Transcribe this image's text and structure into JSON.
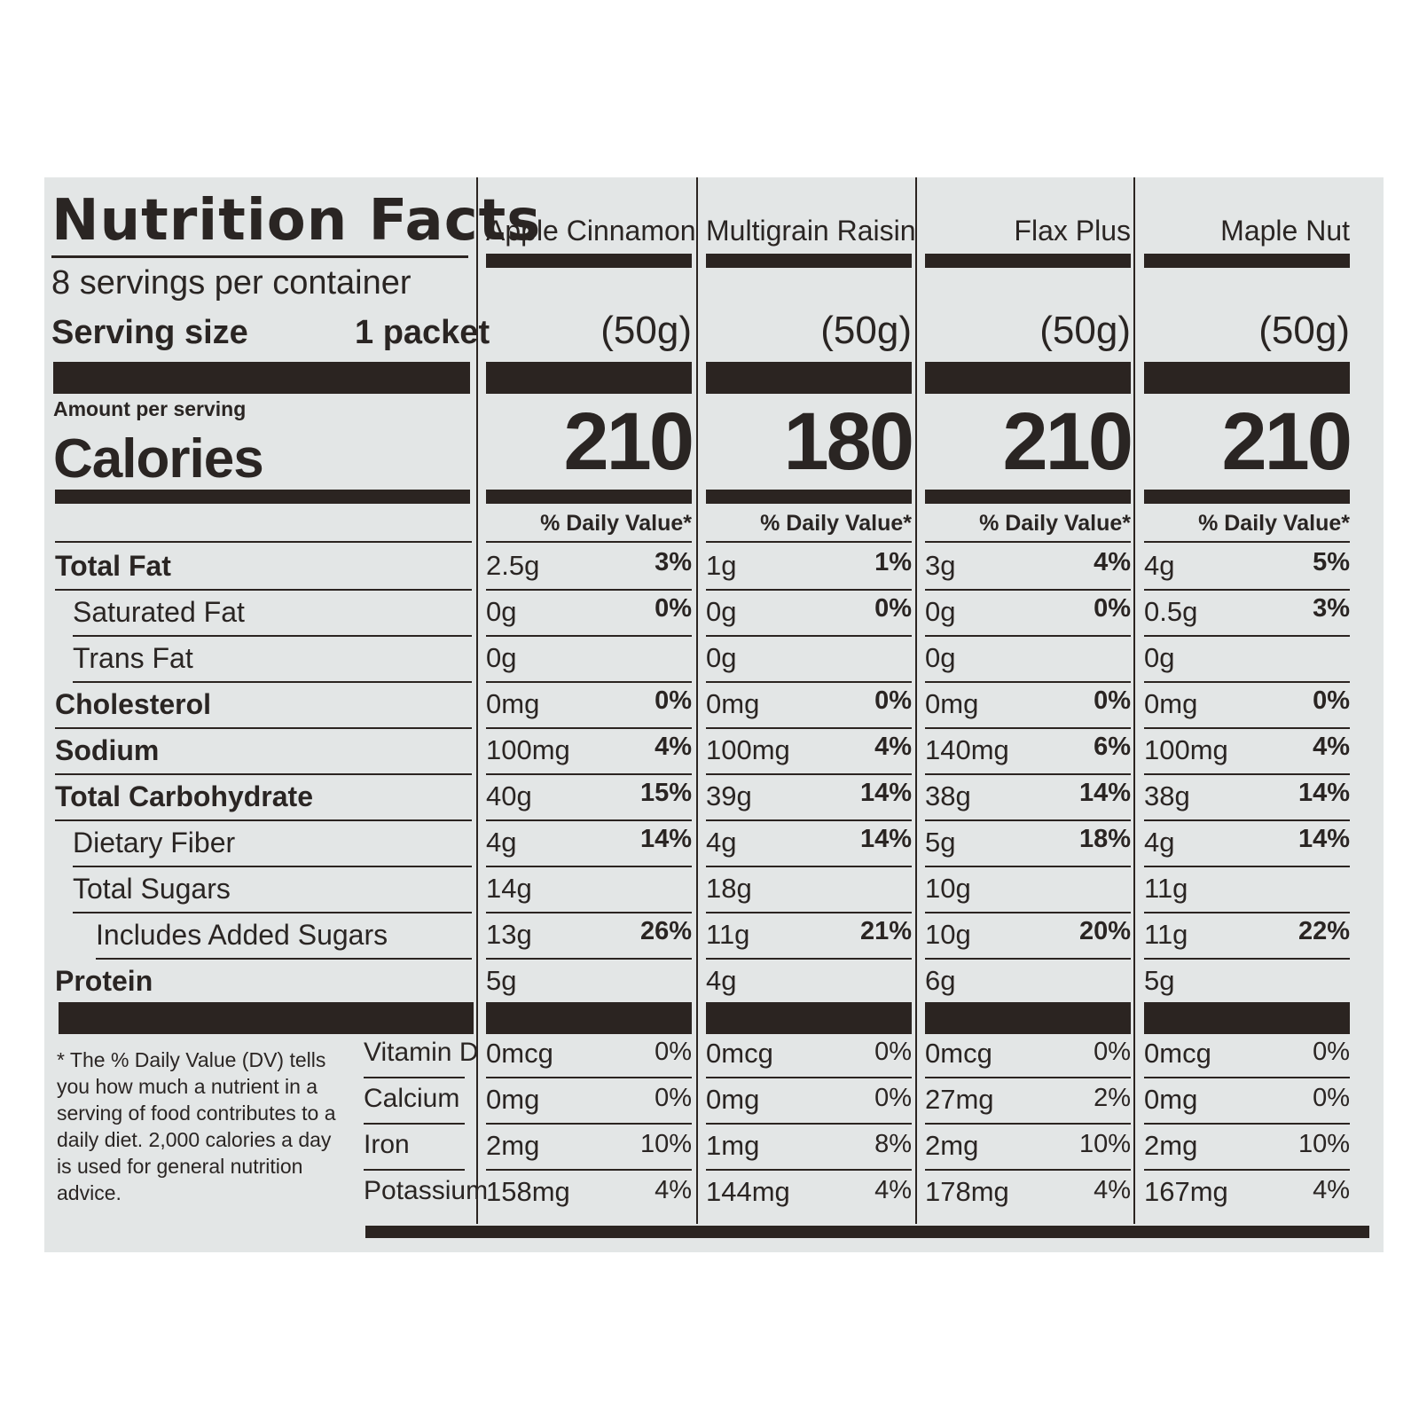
{
  "label": {
    "title": "Nutrition Facts",
    "servings": "8 servings per container",
    "serving_size_label": "Serving size",
    "serving_size_value": "1 packet",
    "amount_per_serving": "Amount per serving",
    "calories_label": "Calories",
    "daily_value_header": "% Daily Value*",
    "footnote": "* The % Daily Value (DV) tells you how much a nutrient in a serving of food contributes to a daily diet. 2,000 calories a day is used for general nutrition advice."
  },
  "nutrients": [
    "Total Fat",
    "Saturated Fat",
    "Trans Fat",
    "Cholesterol",
    "Sodium",
    "Total Carbohydrate",
    "Dietary Fiber",
    "Total Sugars",
    "Includes Added Sugars",
    "Protein"
  ],
  "minerals": [
    "Vitamin D",
    "Calcium",
    "Iron",
    "Potassium"
  ],
  "products": [
    {
      "name": "Apple Cinnamon",
      "serving": "(50g)",
      "calories": "210",
      "values": [
        "2.5g",
        "0g",
        "0g",
        "0mg",
        "100mg",
        "40g",
        "4g",
        "14g",
        "13g",
        "5g"
      ],
      "dv": [
        "3%",
        "0%",
        "",
        "0%",
        "4%",
        "15%",
        "14%",
        "",
        "26%",
        ""
      ],
      "minerals": [
        "0mcg",
        "0mg",
        "2mg",
        "158mg"
      ],
      "minerals_dv": [
        "0%",
        "0%",
        "10%",
        "4%"
      ]
    },
    {
      "name": "Multigrain Raisin",
      "serving": "(50g)",
      "calories": "180",
      "values": [
        "1g",
        "0g",
        "0g",
        "0mg",
        "100mg",
        "39g",
        "4g",
        "18g",
        "11g",
        "4g"
      ],
      "dv": [
        "1%",
        "0%",
        "",
        "0%",
        "4%",
        "14%",
        "14%",
        "",
        "21%",
        ""
      ],
      "minerals": [
        "0mcg",
        "0mg",
        "1mg",
        "144mg"
      ],
      "minerals_dv": [
        "0%",
        "0%",
        "8%",
        "4%"
      ]
    },
    {
      "name": "Flax Plus",
      "serving": "(50g)",
      "calories": "210",
      "values": [
        "3g",
        "0g",
        "0g",
        "0mg",
        "140mg",
        "38g",
        "5g",
        "10g",
        "10g",
        "6g"
      ],
      "dv": [
        "4%",
        "0%",
        "",
        "0%",
        "6%",
        "14%",
        "18%",
        "",
        "20%",
        ""
      ],
      "minerals": [
        "0mcg",
        "27mg",
        "2mg",
        "178mg"
      ],
      "minerals_dv": [
        "0%",
        "2%",
        "10%",
        "4%"
      ]
    },
    {
      "name": "Maple Nut",
      "serving": "(50g)",
      "calories": "210",
      "values": [
        "4g",
        "0.5g",
        "0g",
        "0mg",
        "100mg",
        "38g",
        "4g",
        "11g",
        "11g",
        "5g"
      ],
      "dv": [
        "5%",
        "3%",
        "",
        "0%",
        "4%",
        "14%",
        "14%",
        "",
        "22%",
        ""
      ],
      "minerals": [
        "0mcg",
        "0mg",
        "2mg",
        "167mg"
      ],
      "minerals_dv": [
        "0%",
        "0%",
        "10%",
        "4%"
      ]
    }
  ]
}
